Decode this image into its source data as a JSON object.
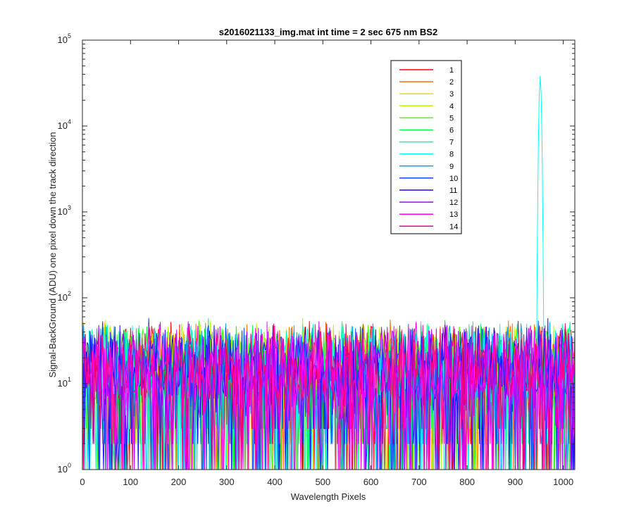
{
  "chart_data": {
    "type": "line",
    "title": "s2016021133_img.mat int time = 2 sec  675 nm BS2",
    "xlabel": "Wavelength Pixels",
    "ylabel": "Signal-BackGround (ADU) one pixel down the track direction",
    "xlim": [
      0,
      1024
    ],
    "ylim": [
      1,
      100000
    ],
    "y_scale": "log",
    "x_ticks": [
      "0",
      "100",
      "200",
      "300",
      "400",
      "500",
      "600",
      "700",
      "800",
      "900",
      "1000"
    ],
    "y_ticks": [
      {
        "base": "10",
        "exp": "0"
      },
      {
        "base": "10",
        "exp": "1"
      },
      {
        "base": "10",
        "exp": "2"
      },
      {
        "base": "10",
        "exp": "3"
      },
      {
        "base": "10",
        "exp": "4"
      },
      {
        "base": "10",
        "exp": "5"
      }
    ],
    "legend_position": "top-right",
    "grid": false,
    "noise_level_approx": [
      1,
      60
    ],
    "peak": {
      "series": "8",
      "x": 952,
      "y": 38000
    },
    "series": [
      {
        "name": "1",
        "color": "#ff0000"
      },
      {
        "name": "2",
        "color": "#ff7000"
      },
      {
        "name": "3",
        "color": "#ffd400"
      },
      {
        "name": "4",
        "color": "#b4ff00"
      },
      {
        "name": "5",
        "color": "#44ff00"
      },
      {
        "name": "6",
        "color": "#00ff44"
      },
      {
        "name": "7",
        "color": "#00ffa8"
      },
      {
        "name": "8",
        "color": "#00ffff"
      },
      {
        "name": "9",
        "color": "#00a8ff"
      },
      {
        "name": "10",
        "color": "#0044ff"
      },
      {
        "name": "11",
        "color": "#2200ff"
      },
      {
        "name": "12",
        "color": "#a800ff"
      },
      {
        "name": "13",
        "color": "#ff00ff"
      },
      {
        "name": "14",
        "color": "#ff0080"
      }
    ]
  }
}
